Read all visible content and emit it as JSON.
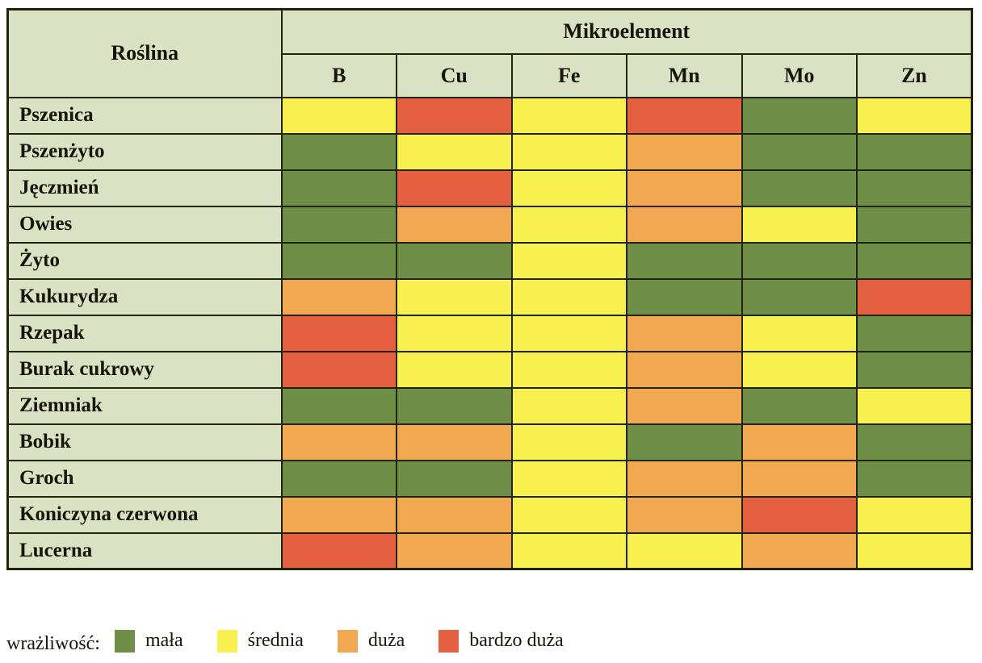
{
  "chart_data": {
    "type": "heatmap",
    "corner_label": "Roślina",
    "group_label": "Mikroelement",
    "columns": [
      "B",
      "Cu",
      "Fe",
      "Mn",
      "Mo",
      "Zn"
    ],
    "rows": [
      {
        "name": "Pszenica",
        "levels": [
          "średnia",
          "bardzo duża",
          "średnia",
          "bardzo duża",
          "mała",
          "średnia"
        ]
      },
      {
        "name": "Pszenżyto",
        "levels": [
          "mała",
          "średnia",
          "średnia",
          "duża",
          "mała",
          "mała"
        ]
      },
      {
        "name": "Jęczmień",
        "levels": [
          "mała",
          "bardzo duża",
          "średnia",
          "duża",
          "mała",
          "mała"
        ]
      },
      {
        "name": "Owies",
        "levels": [
          "mała",
          "duża",
          "średnia",
          "duża",
          "średnia",
          "mała"
        ]
      },
      {
        "name": "Żyto",
        "levels": [
          "mała",
          "mała",
          "średnia",
          "mała",
          "mała",
          "mała"
        ]
      },
      {
        "name": "Kukurydza",
        "levels": [
          "duża",
          "średnia",
          "średnia",
          "mała",
          "mała",
          "bardzo duża"
        ]
      },
      {
        "name": "Rzepak",
        "levels": [
          "bardzo duża",
          "średnia",
          "średnia",
          "duża",
          "średnia",
          "mała"
        ]
      },
      {
        "name": "Burak cukrowy",
        "levels": [
          "bardzo duża",
          "średnia",
          "średnia",
          "duża",
          "średnia",
          "mała"
        ]
      },
      {
        "name": "Ziemniak",
        "levels": [
          "mała",
          "mała",
          "średnia",
          "duża",
          "mała",
          "średnia"
        ]
      },
      {
        "name": "Bobik",
        "levels": [
          "duża",
          "duża",
          "średnia",
          "mała",
          "duża",
          "mała"
        ]
      },
      {
        "name": "Groch",
        "levels": [
          "mała",
          "mała",
          "średnia",
          "duża",
          "duża",
          "mała"
        ]
      },
      {
        "name": "Koniczyna czerwona",
        "levels": [
          "duża",
          "duża",
          "średnia",
          "duża",
          "bardzo duża",
          "średnia"
        ]
      },
      {
        "name": "Lucerna",
        "levels": [
          "bardzo duża",
          "duża",
          "średnia",
          "średnia",
          "duża",
          "średnia"
        ]
      }
    ],
    "legend_title": "wrażliwość:",
    "legend": [
      {
        "label": "mała",
        "color": "#6f8e47"
      },
      {
        "label": "średnia",
        "color": "#f7f04f"
      },
      {
        "label": "duża",
        "color": "#f2a751"
      },
      {
        "label": "bardzo duża",
        "color": "#e55f41"
      }
    ],
    "layout": {
      "legend_position": "bottom",
      "grid": true
    }
  },
  "palette": {
    "header_bg": "#d9e3c3",
    "border": "#21230d",
    "text": "#171408",
    "page_bg": "#ffffff"
  }
}
